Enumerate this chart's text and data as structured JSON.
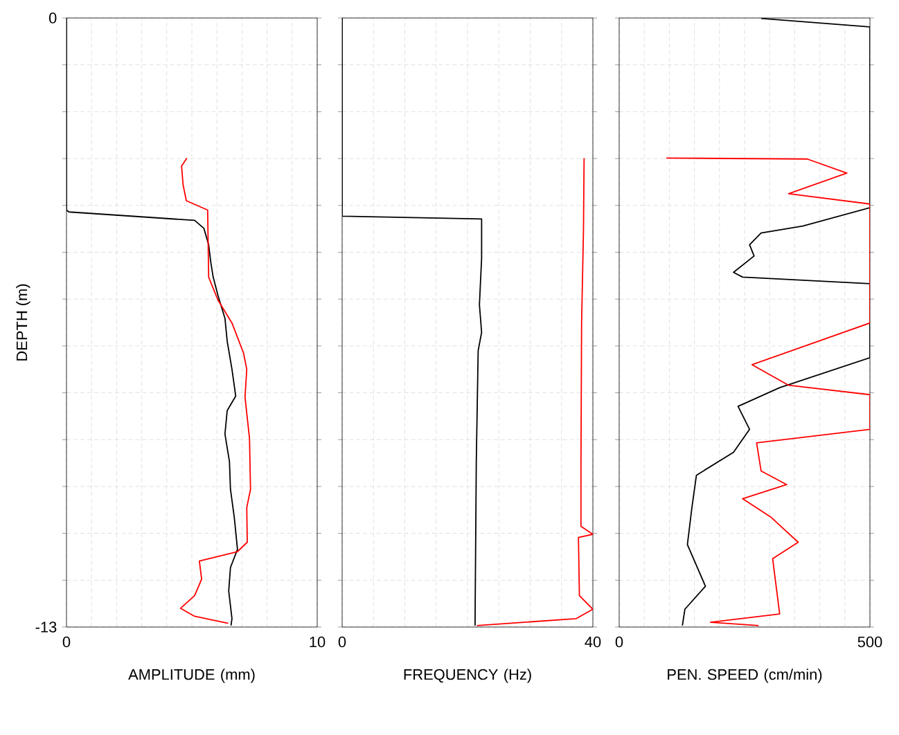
{
  "chart_data": [
    {
      "type": "line",
      "xlabel": "AMPLITUDE (mm)",
      "ylabel": "DEPTH (m)",
      "xlim": [
        0,
        10
      ],
      "ylim": [
        -13,
        0
      ],
      "grid": true,
      "xticks": [
        0,
        {
          "value": 1,
          "label": null
        },
        {
          "value": 2,
          "label": null
        },
        {
          "value": 3,
          "label": null
        },
        {
          "value": 4,
          "label": null
        },
        {
          "value": 5,
          "label": null
        },
        {
          "value": 6,
          "label": null
        },
        {
          "value": 7,
          "label": null
        },
        {
          "value": 8,
          "label": null
        },
        {
          "value": 9,
          "label": null
        },
        10
      ],
      "yticks": [
        -13,
        {
          "value": -12,
          "label": null
        },
        {
          "value": -11,
          "label": null
        },
        {
          "value": -10,
          "label": null
        },
        {
          "value": -9,
          "label": null
        },
        {
          "value": -8,
          "label": null
        },
        {
          "value": -7,
          "label": null
        },
        {
          "value": -6,
          "label": null
        },
        {
          "value": -5,
          "label": null
        },
        {
          "value": -4,
          "label": null
        },
        {
          "value": -3,
          "label": null
        },
        {
          "value": -2,
          "label": null
        },
        {
          "value": -1,
          "label": null
        },
        0
      ],
      "series": [
        {
          "color": "#000000",
          "x": [
            0,
            0,
            0.1,
            5.11,
            5.48,
            5.67,
            5.76,
            5.85,
            6.04,
            6.32,
            6.41,
            6.6,
            6.75,
            6.41,
            6.32,
            6.5,
            6.54,
            6.69,
            6.82,
            6.54,
            6.47,
            6.6,
            6.56
          ],
          "values": [
            0,
            -4.1,
            -4.14,
            -4.32,
            -4.49,
            -4.84,
            -5.23,
            -5.53,
            -5.92,
            -6.41,
            -6.9,
            -7.5,
            -8.07,
            -8.38,
            -8.88,
            -9.47,
            -10.06,
            -10.65,
            -11.34,
            -11.73,
            -12.23,
            -12.82,
            -12.97
          ]
        },
        {
          "color": "#ff0000",
          "x": [
            4.8,
            4.59,
            4.65,
            4.78,
            5.63,
            5.67,
            6.04,
            6.6,
            7.06,
            7.19,
            7.12,
            7.3,
            7.34,
            7.19,
            7.21,
            6.82,
            5.3,
            5.39,
            5.11,
            4.55,
            5.11,
            6.45
          ],
          "values": [
            -2.99,
            -3.16,
            -3.56,
            -3.9,
            -4.1,
            -5.53,
            -6.02,
            -6.51,
            -7.15,
            -7.5,
            -8.09,
            -8.98,
            -10.06,
            -10.45,
            -11.19,
            -11.39,
            -11.59,
            -11.98,
            -12.33,
            -12.6,
            -12.77,
            -12.92
          ]
        }
      ]
    },
    {
      "type": "line",
      "xlabel": "FREQUENCY (Hz)",
      "xlim": [
        0,
        40
      ],
      "ylim": [
        -13,
        0
      ],
      "grid": true,
      "tick_labels": "x",
      "xticks": [
        0,
        {
          "value": 5,
          "label": null
        },
        {
          "value": 10,
          "label": null
        },
        {
          "value": 15,
          "label": null
        },
        {
          "value": 20,
          "label": null
        },
        {
          "value": 25,
          "label": null
        },
        {
          "value": 30,
          "label": null
        },
        {
          "value": 35,
          "label": null
        },
        40
      ],
      "yticks": [
        -13,
        {
          "value": -12,
          "label": null
        },
        {
          "value": -11,
          "label": null
        },
        {
          "value": -10,
          "label": null
        },
        {
          "value": -9,
          "label": null
        },
        {
          "value": -8,
          "label": null
        },
        {
          "value": -7,
          "label": null
        },
        {
          "value": -6,
          "label": null
        },
        {
          "value": -5,
          "label": null
        },
        {
          "value": -4,
          "label": null
        },
        {
          "value": -3,
          "label": null
        },
        {
          "value": -2,
          "label": null
        },
        {
          "value": -1,
          "label": null
        },
        0
      ],
      "series": [
        {
          "color": "#000000",
          "x": [
            0,
            0,
            22.25,
            22.25,
            21.9,
            22.25,
            21.7,
            21.4,
            21.2
          ],
          "values": [
            0,
            -4.23,
            -4.29,
            -5.13,
            -6.12,
            -6.71,
            -7.1,
            -9.47,
            -12.97
          ]
        },
        {
          "color": "#ff0000",
          "x": [
            38.6,
            38.5,
            38.2,
            38.1,
            38.1,
            40,
            37.7,
            37.85,
            40,
            37.35,
            21.5
          ],
          "values": [
            -2.99,
            -4.54,
            -6.51,
            -9.47,
            -10.85,
            -11.02,
            -11.09,
            -12.33,
            -12.62,
            -12.82,
            -12.97
          ]
        }
      ]
    },
    {
      "type": "line",
      "xlabel": "PEN. SPEED (cm/min)",
      "xlim": [
        0,
        500
      ],
      "ylim": [
        -13,
        0
      ],
      "grid": true,
      "tick_labels": "x",
      "xticks": [
        0,
        {
          "value": 50,
          "label": null
        },
        {
          "value": 100,
          "label": null
        },
        {
          "value": 150,
          "label": null
        },
        {
          "value": 200,
          "label": null
        },
        {
          "value": 250,
          "label": null
        },
        {
          "value": 300,
          "label": null
        },
        {
          "value": 350,
          "label": null
        },
        {
          "value": 400,
          "label": null
        },
        {
          "value": 450,
          "label": null
        },
        500
      ],
      "yticks": [
        -13,
        {
          "value": -12,
          "label": null
        },
        {
          "value": -11,
          "label": null
        },
        {
          "value": -10,
          "label": null
        },
        {
          "value": -9,
          "label": null
        },
        {
          "value": -8,
          "label": null
        },
        {
          "value": -7,
          "label": null
        },
        {
          "value": -6,
          "label": null
        },
        {
          "value": -5,
          "label": null
        },
        {
          "value": -4,
          "label": null
        },
        {
          "value": -3,
          "label": null
        },
        {
          "value": -2,
          "label": null
        },
        {
          "value": -1,
          "label": null
        },
        0
      ],
      "series": [
        {
          "color": "#000000",
          "x": [
            283,
            500,
            500,
            366,
            283,
            260,
            269,
            228,
            246,
            500,
            500,
            320,
            237,
            260,
            228,
            154,
            145,
            136,
            172,
            131,
            126
          ],
          "values": [
            -0.01,
            -0.19,
            -4.05,
            -4.44,
            -4.59,
            -4.84,
            -5.08,
            -5.43,
            -5.53,
            -5.67,
            -7.25,
            -7.89,
            -8.29,
            -8.78,
            -9.27,
            -9.76,
            -10.45,
            -11.24,
            -12.13,
            -12.62,
            -12.97
          ]
        },
        {
          "color": "#ff0000",
          "x": [
            94,
            375,
            454,
            338,
            500,
            500,
            265,
            338,
            500,
            500,
            274,
            283,
            334,
            246,
            302,
            357,
            306,
            320,
            182,
            278
          ],
          "values": [
            -2.99,
            -3.01,
            -3.31,
            -3.75,
            -3.97,
            -6.51,
            -7.4,
            -7.84,
            -8.04,
            -8.78,
            -9.07,
            -9.67,
            -9.96,
            -10.26,
            -10.65,
            -11.19,
            -11.54,
            -12.72,
            -12.9,
            -12.97
          ]
        }
      ]
    }
  ]
}
